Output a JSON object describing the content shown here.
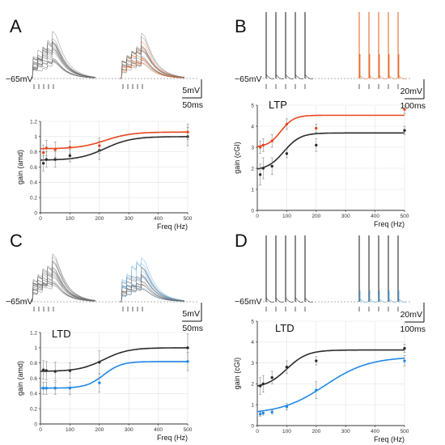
{
  "colors": {
    "control": "#2b2b2b",
    "ltp": "#e8461c",
    "ltd": "#1f88e5",
    "trace_gray": "#6f6f6f",
    "ltp_trace": "#e86a2c",
    "ltd_trace": "#4f9fd8"
  },
  "panels": [
    {
      "id": "A",
      "label": "A",
      "voltage_label": "−65mV",
      "scalebar": {
        "v_label": "5mV",
        "t_label": "50ms"
      },
      "trace_kind": "subthreshold",
      "chart_title": ""
    },
    {
      "id": "B",
      "label": "B",
      "voltage_label": "−65mV",
      "scalebar": {
        "v_label": "20mV",
        "t_label": "100ms"
      },
      "trace_kind": "spikes",
      "chart_title": "LTP"
    },
    {
      "id": "C",
      "label": "C",
      "voltage_label": "−65mV",
      "scalebar": {
        "v_label": "5mV",
        "t_label": "50ms"
      },
      "trace_kind": "subthreshold",
      "chart_title": "LTD"
    },
    {
      "id": "D",
      "label": "D",
      "voltage_label": "−65mV",
      "scalebar": {
        "v_label": "20mV",
        "t_label": "100ms"
      },
      "trace_kind": "spikes",
      "chart_title": "LTD"
    }
  ],
  "chart_data": [
    {
      "panel": "A",
      "type": "line",
      "title": "",
      "xlabel": "Freq (Hz)",
      "ylabel": "gain (amd)",
      "xlim": [
        0,
        500
      ],
      "ylim": [
        0,
        1.2
      ],
      "xticks": [
        0,
        100,
        200,
        300,
        400,
        500
      ],
      "yticks": [
        0,
        0.2,
        0.4,
        0.6,
        0.8,
        1,
        1.2
      ],
      "ytick_labels": [
        "0",
        "0.2",
        "0.4",
        "0.6",
        "0.8",
        "1",
        "1.2"
      ],
      "series": [
        {
          "role": "control",
          "x": [
            10,
            20,
            50,
            100,
            200,
            500
          ],
          "y": [
            0.65,
            0.7,
            0.7,
            0.75,
            0.82,
            1.0
          ],
          "err": [
            0.1,
            0.1,
            0.1,
            0.08,
            0.12,
            0.12
          ],
          "fit": {
            "base": 0.69,
            "amp": 0.31,
            "x0": 220,
            "k": 45
          }
        },
        {
          "role": "ltp",
          "x": [
            10,
            20,
            50,
            100,
            200,
            500
          ],
          "y": [
            0.79,
            0.85,
            0.83,
            0.86,
            0.88,
            1.06
          ],
          "err": [
            0.1,
            0.1,
            0.1,
            0.08,
            0.1,
            0.1
          ],
          "fit": {
            "base": 0.84,
            "amp": 0.22,
            "x0": 220,
            "k": 45
          }
        }
      ]
    },
    {
      "panel": "B",
      "type": "line",
      "title": "LTP",
      "xlabel": "Freq (Hz)",
      "ylabel": "gain (cGI)",
      "xlim": [
        0,
        500
      ],
      "ylim": [
        0,
        5
      ],
      "xticks": [
        0,
        100,
        200,
        300,
        400,
        500
      ],
      "yticks": [
        0,
        1,
        2,
        3,
        4,
        5
      ],
      "ytick_labels": [
        "0",
        "1",
        "2",
        "3",
        "4",
        "5"
      ],
      "series": [
        {
          "role": "control",
          "x": [
            10,
            20,
            50,
            100,
            200,
            500
          ],
          "y": [
            1.7,
            2.0,
            2.1,
            2.7,
            3.1,
            3.8
          ],
          "err": [
            0.5,
            0.5,
            0.4,
            0.2,
            0.3,
            0.2
          ],
          "fit": {
            "base": 1.9,
            "amp": 1.78,
            "x0": 90,
            "k": 28
          }
        },
        {
          "role": "ltp",
          "x": [
            10,
            20,
            50,
            100,
            200,
            500
          ],
          "y": [
            3.0,
            3.1,
            3.3,
            4.1,
            3.9,
            4.8
          ],
          "err": [
            0.3,
            0.3,
            0.3,
            0.25,
            0.2,
            0.2
          ],
          "fit": {
            "base": 3.0,
            "amp": 1.52,
            "x0": 80,
            "k": 22
          }
        }
      ]
    },
    {
      "panel": "C",
      "type": "line",
      "title": "LTD",
      "xlabel": "Freq (Hz)",
      "ylabel": "gain (amd)",
      "xlim": [
        0,
        500
      ],
      "ylim": [
        0,
        1.2
      ],
      "xticks": [
        0,
        100,
        200,
        300,
        400,
        500
      ],
      "yticks": [
        0,
        0.2,
        0.4,
        0.6,
        0.8,
        1,
        1.2
      ],
      "ytick_labels": [
        "0",
        "0.2",
        "0.4",
        "0.6",
        "0.8",
        "1",
        "1.2"
      ],
      "series": [
        {
          "role": "control",
          "x": [
            10,
            20,
            50,
            100,
            200,
            500
          ],
          "y": [
            0.71,
            0.7,
            0.69,
            0.7,
            0.81,
            1.0
          ],
          "err": [
            0.12,
            0.12,
            0.12,
            0.1,
            0.15,
            0.18
          ],
          "fit": {
            "base": 0.69,
            "amp": 0.31,
            "x0": 215,
            "k": 42
          }
        },
        {
          "role": "ltd",
          "x": [
            10,
            20,
            50,
            100,
            200,
            500
          ],
          "y": [
            0.47,
            0.47,
            0.47,
            0.47,
            0.54,
            0.82
          ],
          "err": [
            0.08,
            0.08,
            0.08,
            0.08,
            0.12,
            0.12
          ],
          "fit": {
            "base": 0.47,
            "amp": 0.35,
            "x0": 215,
            "k": 30
          }
        }
      ]
    },
    {
      "panel": "D",
      "type": "line",
      "title": "LTD",
      "xlabel": "Freq (Hz)",
      "ylabel": "gain (cGI)",
      "xlim": [
        0,
        500
      ],
      "ylim": [
        0,
        5
      ],
      "xticks": [
        0,
        100,
        200,
        300,
        400,
        500
      ],
      "yticks": [
        0,
        1,
        2,
        3,
        4,
        5
      ],
      "ytick_labels": [
        "0",
        "1",
        "2",
        "3",
        "4",
        "5"
      ],
      "series": [
        {
          "role": "control",
          "x": [
            10,
            20,
            50,
            100,
            200,
            500
          ],
          "y": [
            1.9,
            2.0,
            2.3,
            2.8,
            3.1,
            3.7
          ],
          "err": [
            0.4,
            0.4,
            0.3,
            0.3,
            0.2,
            0.2
          ],
          "fit": {
            "base": 1.8,
            "amp": 1.82,
            "x0": 100,
            "k": 35
          }
        },
        {
          "role": "ltd",
          "x": [
            10,
            20,
            50,
            100,
            200,
            500
          ],
          "y": [
            0.55,
            0.6,
            0.65,
            0.9,
            1.7,
            3.1
          ],
          "err": [
            0.1,
            0.1,
            0.1,
            0.15,
            0.4,
            0.25
          ],
          "fit": {
            "base": 0.55,
            "amp": 2.75,
            "x0": 230,
            "k": 75
          }
        }
      ]
    }
  ]
}
